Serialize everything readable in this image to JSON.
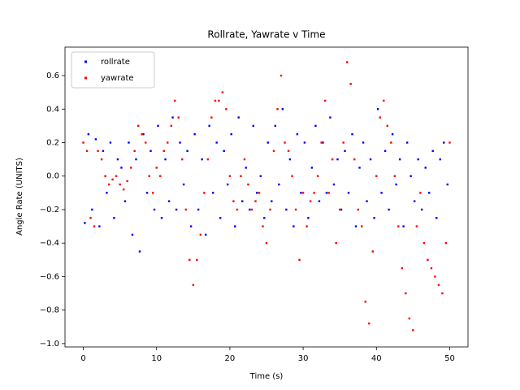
{
  "chart_data": {
    "type": "scatter",
    "title": "Rollrate, Yawrate v Time",
    "x_label": "Time (s)",
    "y_label": "Angle Rate (UNITS)",
    "xlim": [
      -2.5,
      52.5
    ],
    "ylim": [
      -1.02,
      0.77
    ],
    "xticks": [
      0,
      10,
      20,
      30,
      40,
      50
    ],
    "yticks": [
      {
        "value": -1.0,
        "label": "−1.0"
      },
      {
        "value": -0.8,
        "label": "−0.8"
      },
      {
        "value": -0.6,
        "label": "−0.6"
      },
      {
        "value": -0.4,
        "label": "−0.4"
      },
      {
        "value": -0.2,
        "label": "−0.2"
      },
      {
        "value": 0.0,
        "label": "0.0"
      },
      {
        "value": 0.2,
        "label": "0.2"
      },
      {
        "value": 0.4,
        "label": "0.4"
      },
      {
        "value": 0.6,
        "label": "0.6"
      }
    ],
    "legend": "upper left",
    "series": [
      {
        "name": "rollrate",
        "color": "#0000ff",
        "x": [
          0.2,
          0.7,
          1.2,
          1.7,
          2.2,
          2.7,
          3.2,
          3.7,
          4.2,
          4.7,
          5.2,
          5.7,
          6.2,
          6.7,
          7.2,
          7.7,
          8.2,
          8.7,
          9.2,
          9.7,
          10.2,
          10.7,
          11.2,
          11.7,
          12.2,
          12.7,
          13.2,
          13.7,
          14.2,
          14.7,
          15.2,
          15.7,
          16.2,
          16.7,
          17.2,
          17.7,
          18.2,
          18.7,
          19.2,
          19.7,
          20.2,
          20.7,
          21.2,
          21.7,
          22.2,
          22.7,
          23.2,
          23.7,
          24.2,
          24.7,
          25.2,
          25.7,
          26.2,
          26.7,
          27.2,
          27.7,
          28.2,
          28.7,
          29.2,
          29.7,
          30.2,
          30.7,
          31.2,
          31.7,
          32.2,
          32.7,
          33.2,
          33.7,
          34.2,
          34.7,
          35.2,
          35.7,
          36.2,
          36.7,
          37.2,
          37.7,
          38.2,
          38.7,
          39.2,
          39.7,
          40.2,
          40.7,
          41.2,
          41.7,
          42.2,
          42.7,
          43.2,
          43.7,
          44.2,
          44.7,
          45.2,
          45.7,
          46.2,
          46.7,
          47.2,
          47.7,
          48.2,
          48.7,
          49.2,
          49.7
        ],
        "values": [
          -0.28,
          0.25,
          -0.2,
          0.22,
          -0.3,
          0.15,
          -0.1,
          0.2,
          -0.25,
          0.1,
          0.05,
          -0.15,
          0.2,
          -0.35,
          0.1,
          -0.45,
          0.25,
          -0.1,
          0.15,
          -0.2,
          0.3,
          -0.25,
          0.1,
          -0.15,
          0.35,
          -0.2,
          0.2,
          -0.05,
          0.15,
          -0.3,
          0.25,
          -0.2,
          0.1,
          -0.35,
          0.3,
          -0.1,
          0.2,
          -0.25,
          0.15,
          -0.05,
          0.25,
          -0.3,
          0.35,
          -0.15,
          0.05,
          -0.2,
          0.3,
          -0.1,
          0.0,
          -0.25,
          0.2,
          -0.15,
          0.3,
          -0.05,
          0.4,
          -0.2,
          0.1,
          -0.3,
          0.25,
          -0.1,
          0.2,
          -0.25,
          0.05,
          0.3,
          -0.15,
          0.2,
          -0.1,
          0.35,
          -0.05,
          0.1,
          -0.2,
          0.15,
          -0.1,
          0.25,
          -0.3,
          0.05,
          0.2,
          -0.15,
          0.1,
          -0.25,
          0.4,
          -0.1,
          0.15,
          -0.2,
          0.25,
          -0.05,
          0.1,
          -0.3,
          0.2,
          0.0,
          -0.15,
          0.1,
          -0.2,
          0.05,
          -0.1,
          0.15,
          -0.25,
          0.1,
          0.2,
          -0.05
        ]
      },
      {
        "name": "yawrate",
        "color": "#ff0000",
        "x": [
          0,
          0.5,
          1,
          1.5,
          2,
          2.5,
          3,
          3.5,
          4,
          4.5,
          5,
          5.5,
          6,
          6.5,
          7,
          7.5,
          8,
          8.5,
          9,
          9.5,
          10,
          10.5,
          11,
          11.5,
          12,
          12.5,
          13,
          13.5,
          14,
          14.5,
          15,
          15.5,
          16,
          16.5,
          17,
          17.5,
          18,
          18.5,
          19,
          19.5,
          20,
          20.5,
          21,
          21.5,
          22,
          22.5,
          23,
          23.5,
          24,
          24.5,
          25,
          25.5,
          26,
          26.5,
          27,
          27.5,
          28,
          28.5,
          29,
          29.5,
          30,
          30.5,
          31,
          31.5,
          32,
          32.5,
          33,
          33.5,
          34,
          34.5,
          35,
          35.5,
          36,
          36.5,
          37,
          37.5,
          38,
          38.5,
          39,
          39.5,
          40,
          40.5,
          41,
          41.5,
          42,
          42.5,
          43,
          43.5,
          44,
          44.5,
          45,
          45.5,
          46,
          46.5,
          47,
          47.5,
          48,
          48.5,
          49,
          49.5,
          50
        ],
        "values": [
          0.2,
          0.15,
          -0.25,
          -0.3,
          0.15,
          0.1,
          0.0,
          -0.05,
          -0.02,
          0.0,
          -0.05,
          -0.08,
          -0.03,
          0.05,
          0.15,
          0.3,
          0.25,
          0.2,
          0.0,
          -0.1,
          0.05,
          0.0,
          0.15,
          0.2,
          0.3,
          0.45,
          0.35,
          0.1,
          -0.2,
          -0.5,
          -0.65,
          -0.5,
          -0.35,
          -0.1,
          0.1,
          0.35,
          0.45,
          0.45,
          0.5,
          0.4,
          0.0,
          -0.15,
          -0.2,
          0.0,
          0.1,
          -0.05,
          -0.2,
          -0.15,
          -0.1,
          -0.3,
          -0.4,
          -0.2,
          0.15,
          0.4,
          0.6,
          0.2,
          0.15,
          0.0,
          -0.2,
          -0.5,
          -0.1,
          -0.3,
          -0.15,
          -0.1,
          0.0,
          0.2,
          0.45,
          -0.1,
          0.1,
          -0.4,
          -0.2,
          0.2,
          0.68,
          0.55,
          0.1,
          -0.2,
          -0.3,
          -0.75,
          -0.88,
          -0.45,
          0.0,
          0.35,
          0.45,
          0.3,
          0.2,
          0.0,
          -0.3,
          -0.55,
          -0.7,
          -0.85,
          -0.92,
          -0.3,
          -0.1,
          -0.4,
          -0.5,
          -0.55,
          -0.6,
          -0.65,
          -0.7,
          -0.4,
          0.2
        ]
      }
    ]
  }
}
